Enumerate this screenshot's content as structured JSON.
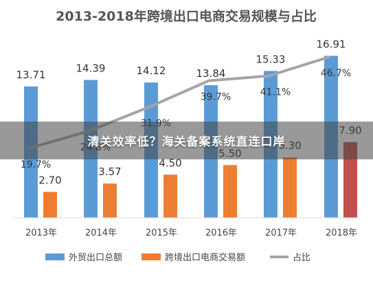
{
  "chart_data": {
    "type": "bar",
    "title": "2013-2018年跨境出口电商交易规模与占比",
    "categories": [
      "2013年",
      "2014年",
      "2015年",
      "2016年",
      "2017年",
      "2018年"
    ],
    "series": [
      {
        "name": "外贸出口总额",
        "type": "bar",
        "values": [
          13.71,
          14.39,
          14.12,
          13.84,
          15.33,
          16.91
        ],
        "labels": [
          "13.71",
          "14.39",
          "14.12",
          "13.84",
          "15.33",
          "16.91"
        ]
      },
      {
        "name": "跨境出口电商交易额",
        "type": "bar",
        "values": [
          2.7,
          3.57,
          4.5,
          5.5,
          6.3,
          7.9
        ],
        "labels": [
          "2.70",
          "3.57",
          "4.50",
          "5.50",
          "6.30",
          "7.90"
        ]
      },
      {
        "name": "占比",
        "type": "line",
        "values": [
          19.7,
          24.8,
          31.9,
          39.7,
          41.1,
          46.7
        ],
        "labels": [
          "19.7%",
          "24.8%",
          "31.9%",
          "39.7%",
          "41.1%",
          "46.7%"
        ]
      }
    ],
    "colors": {
      "export": "#5b9bd5",
      "ecommerce": "#ed7d31",
      "ratio": "#a5a5a5",
      "ecommerce_last": "#c0504d"
    },
    "grid": false,
    "legend_position": "bottom"
  },
  "overlay": {
    "caption": "清关效率低？海关备案系统直连口岸"
  }
}
